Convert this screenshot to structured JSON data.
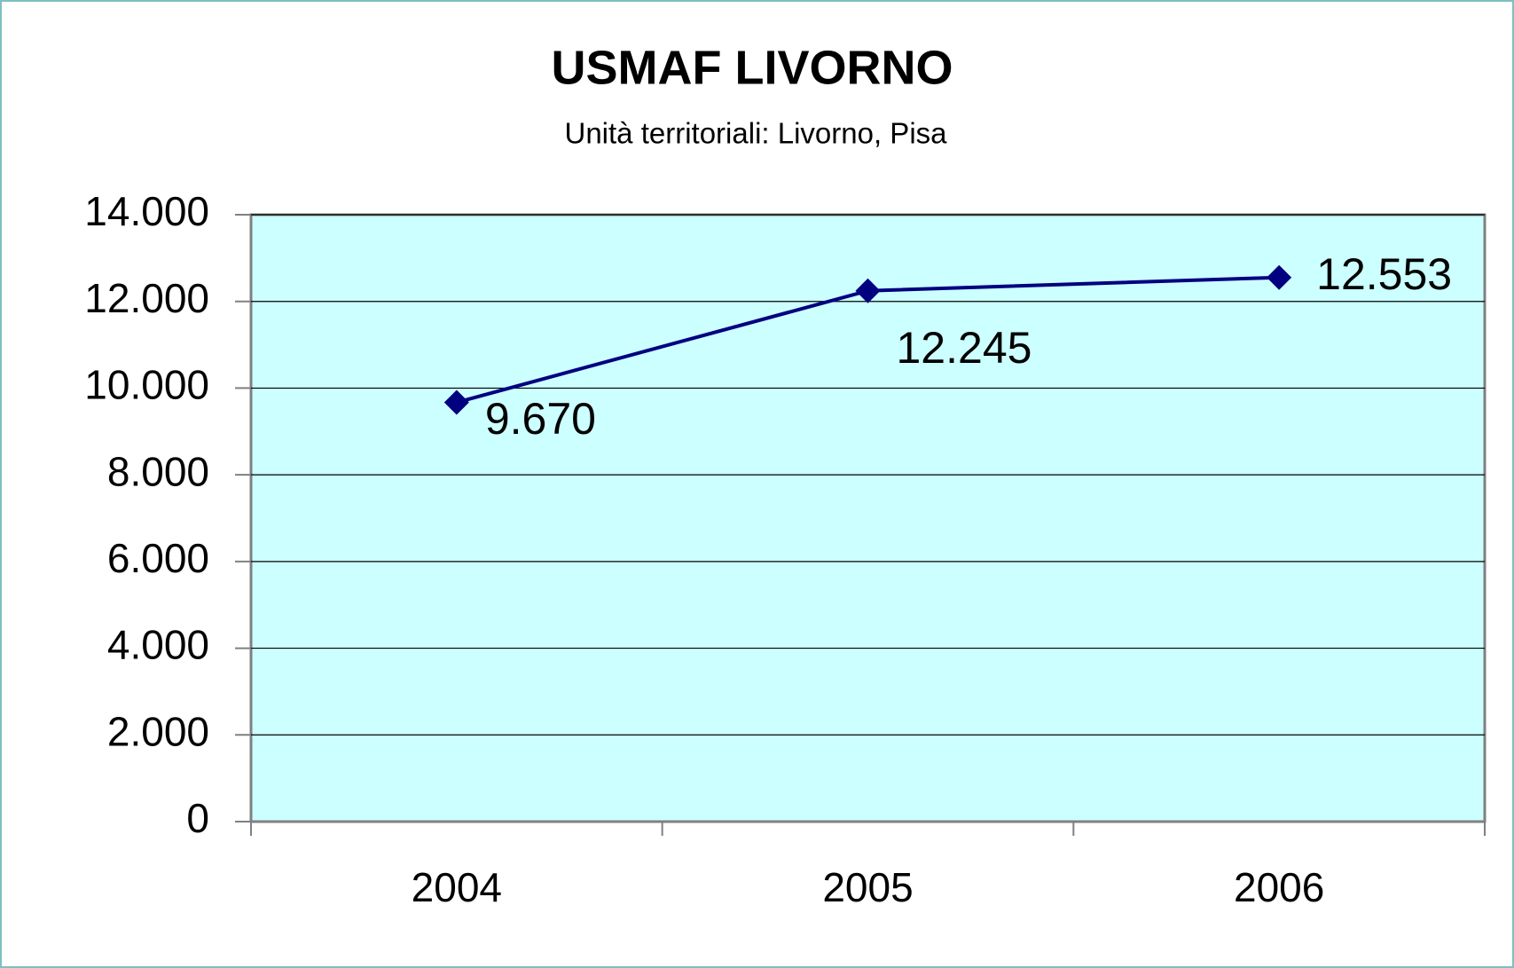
{
  "chart_data": {
    "type": "line",
    "title": "USMAF LIVORNO",
    "subtitle": "Unità territoriali: Livorno, Pisa",
    "categories": [
      "2004",
      "2005",
      "2006"
    ],
    "series": [
      {
        "name": "USMAF LIVORNO",
        "color": "#000080",
        "values": [
          9670,
          12245,
          12553
        ],
        "value_labels": [
          "9.670",
          "12.245",
          "12.553"
        ]
      }
    ],
    "ylim": [
      0,
      14000
    ],
    "yticks": [
      0,
      {
        "value": 2000,
        "label": "2.000"
      },
      {
        "value": 4000,
        "label": "4.000"
      },
      {
        "value": 6000,
        "label": "6.000"
      },
      {
        "value": 8000,
        "label": "8.000"
      },
      {
        "value": 10000,
        "label": "10.000"
      },
      {
        "value": 12000,
        "label": "12.000"
      },
      {
        "value": 14000,
        "label": "14.000"
      }
    ],
    "grid": true,
    "plot_background": "#ccffff"
  }
}
